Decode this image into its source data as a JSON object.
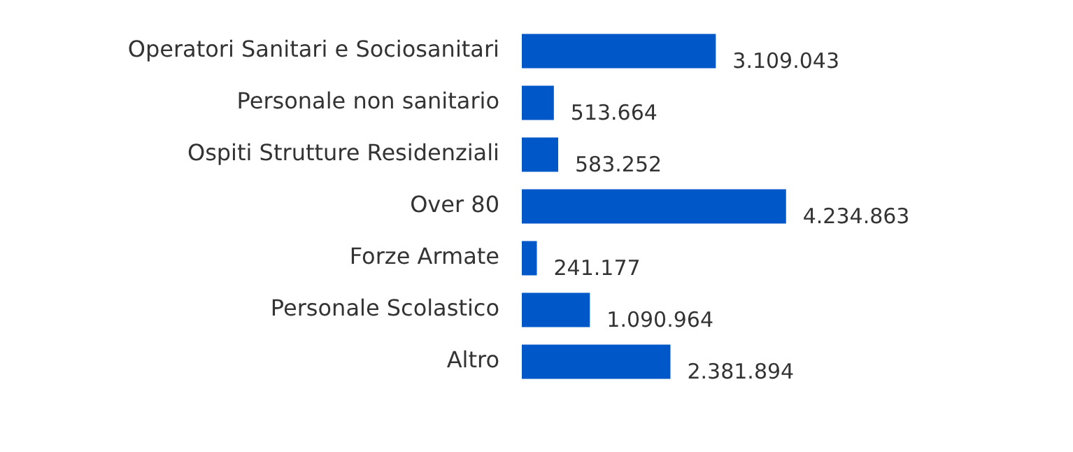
{
  "chart_data": {
    "type": "bar",
    "orientation": "horizontal",
    "categories": [
      "Operatori Sanitari e Sociosanitari",
      "Personale non sanitario",
      "Ospiti Strutture Residenziali",
      "Over 80",
      "Forze Armate",
      "Personale Scolastico",
      "Altro"
    ],
    "values": [
      3109043,
      513664,
      583252,
      4234863,
      241177,
      1090964,
      2381894
    ],
    "value_labels": [
      "3.109.043",
      "513.664",
      "583.252",
      "4.234.863",
      "241.177",
      "1.090.964",
      "2.381.894"
    ],
    "color": "#0057c8",
    "legend": false,
    "tick_labels": "y"
  }
}
